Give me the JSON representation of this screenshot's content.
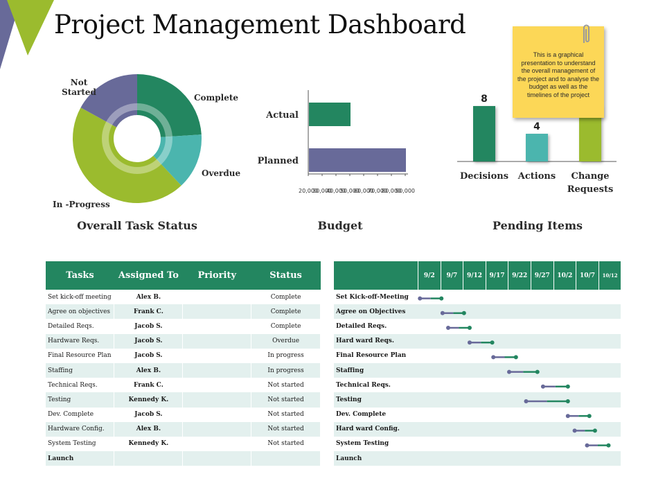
{
  "title": "Project Management Dashboard",
  "note": {
    "text": "This is a graphical presentation to understand the overall management of the project and to analyse the budget as well as the timelines of the project"
  },
  "colors": {
    "green": "#238660",
    "teal": "#4bb5ae",
    "lime": "#9bbb2e",
    "purple": "#686a99",
    "header_green": "#238660",
    "row_alt": "#e3f0ee",
    "note_yellow": "#fcd757"
  },
  "sections": {
    "task_status": "Overall Task Status",
    "budget": "Budget",
    "pending": "Pending Items"
  },
  "chart_data": [
    {
      "type": "pie",
      "title": "Overall Task Status",
      "slices": [
        {
          "label": "Complete",
          "value": 24,
          "color": "#238660"
        },
        {
          "label": "Overdue",
          "value": 14,
          "color": "#4bb5ae"
        },
        {
          "label": "In -Progress",
          "value": 45,
          "color": "#9bbb2e"
        },
        {
          "label": "Not Started",
          "value": 17,
          "color": "#686a99"
        }
      ]
    },
    {
      "type": "bar",
      "orientation": "horizontal",
      "title": "Budget",
      "categories": [
        "Actual",
        "Planned"
      ],
      "values": [
        50000,
        90000
      ],
      "colors": [
        "#238660",
        "#686a99"
      ],
      "xlim": [
        20000,
        90000
      ],
      "ticks": [
        20000,
        30000,
        40000,
        50000,
        60000,
        70000,
        80000,
        90000
      ],
      "tick_labels": [
        "20,000",
        "30,000",
        "40,000",
        "50,000",
        "60,000",
        "70,000",
        "80,000",
        "90,000"
      ]
    },
    {
      "type": "bar",
      "title": "Pending Items",
      "categories": [
        "Decisions",
        "Actions",
        "Change Requests"
      ],
      "category_lines": [
        [
          "Decisions"
        ],
        [
          "Actions"
        ],
        [
          "Change",
          "Requests"
        ]
      ],
      "values": [
        8,
        4,
        8
      ],
      "data_labels": [
        "8",
        "4",
        ""
      ],
      "colors": [
        "#238660",
        "#4bb5ae",
        "#9bbb2e"
      ],
      "ylim": [
        0,
        10
      ]
    },
    {
      "type": "gantt",
      "dates": [
        "9/2",
        "9/7",
        "9/12",
        "9/17",
        "9/22",
        "9/27",
        "10/2",
        "10/7",
        "10/12"
      ],
      "tasks": [
        {
          "name": "Set Kick-off-Meeting",
          "start": 0.1,
          "end": 1.05
        },
        {
          "name": "Agree on Objectives",
          "start": 1.1,
          "end": 2.05
        },
        {
          "name": "Detailed Reqs.",
          "start": 1.35,
          "end": 2.3
        },
        {
          "name": "Hard ward Reqs.",
          "start": 2.3,
          "end": 3.3
        },
        {
          "name": "Final Resource Plan",
          "start": 3.35,
          "end": 4.35
        },
        {
          "name": "Staffing",
          "start": 4.05,
          "end": 5.3
        },
        {
          "name": "Technical Reqs.",
          "start": 5.55,
          "end": 6.65
        },
        {
          "name": "Testing",
          "start": 4.8,
          "end": 6.65
        },
        {
          "name": "Dev. Complete",
          "start": 6.65,
          "end": 7.6
        },
        {
          "name": "Hard ward Config.",
          "start": 6.95,
          "end": 7.85
        },
        {
          "name": "System Testing",
          "start": 7.5,
          "end": 8.45
        },
        {
          "name": "Launch",
          "start": null,
          "end": null
        }
      ]
    }
  ],
  "task_table": {
    "headers": [
      "Tasks",
      "Assigned To",
      "Priority",
      "Status"
    ],
    "rows": [
      {
        "task": "Set kick-off meeting",
        "assigned": "Alex B.",
        "priority": "",
        "status": "Complete"
      },
      {
        "task": "Agree on objectives",
        "assigned": "Frank C.",
        "priority": "",
        "status": "Complete"
      },
      {
        "task": "Detailed Reqs.",
        "assigned": "Jacob S.",
        "priority": "",
        "status": "Complete"
      },
      {
        "task": "Hardware Reqs.",
        "assigned": "Jacob S.",
        "priority": "",
        "status": "Overdue"
      },
      {
        "task": "Final Resource Plan",
        "assigned": "Jacob S.",
        "priority": "",
        "status": "In progress"
      },
      {
        "task": "Staffing",
        "assigned": "Alex B.",
        "priority": "",
        "status": "In progress"
      },
      {
        "task": "Technical Reqs.",
        "assigned": "Frank C.",
        "priority": "",
        "status": "Not started"
      },
      {
        "task": "Testing",
        "assigned": "Kennedy K.",
        "priority": "",
        "status": "Not started"
      },
      {
        "task": "Dev. Complete",
        "assigned": "Jacob S.",
        "priority": "",
        "status": "Not started"
      },
      {
        "task": "Hardware Config.",
        "assigned": "Alex B.",
        "priority": "",
        "status": "Not started"
      },
      {
        "task": "System Testing",
        "assigned": "Kennedy K.",
        "priority": "",
        "status": "Not started"
      },
      {
        "task": "Launch",
        "assigned": "",
        "priority": "",
        "status": ""
      }
    ]
  }
}
